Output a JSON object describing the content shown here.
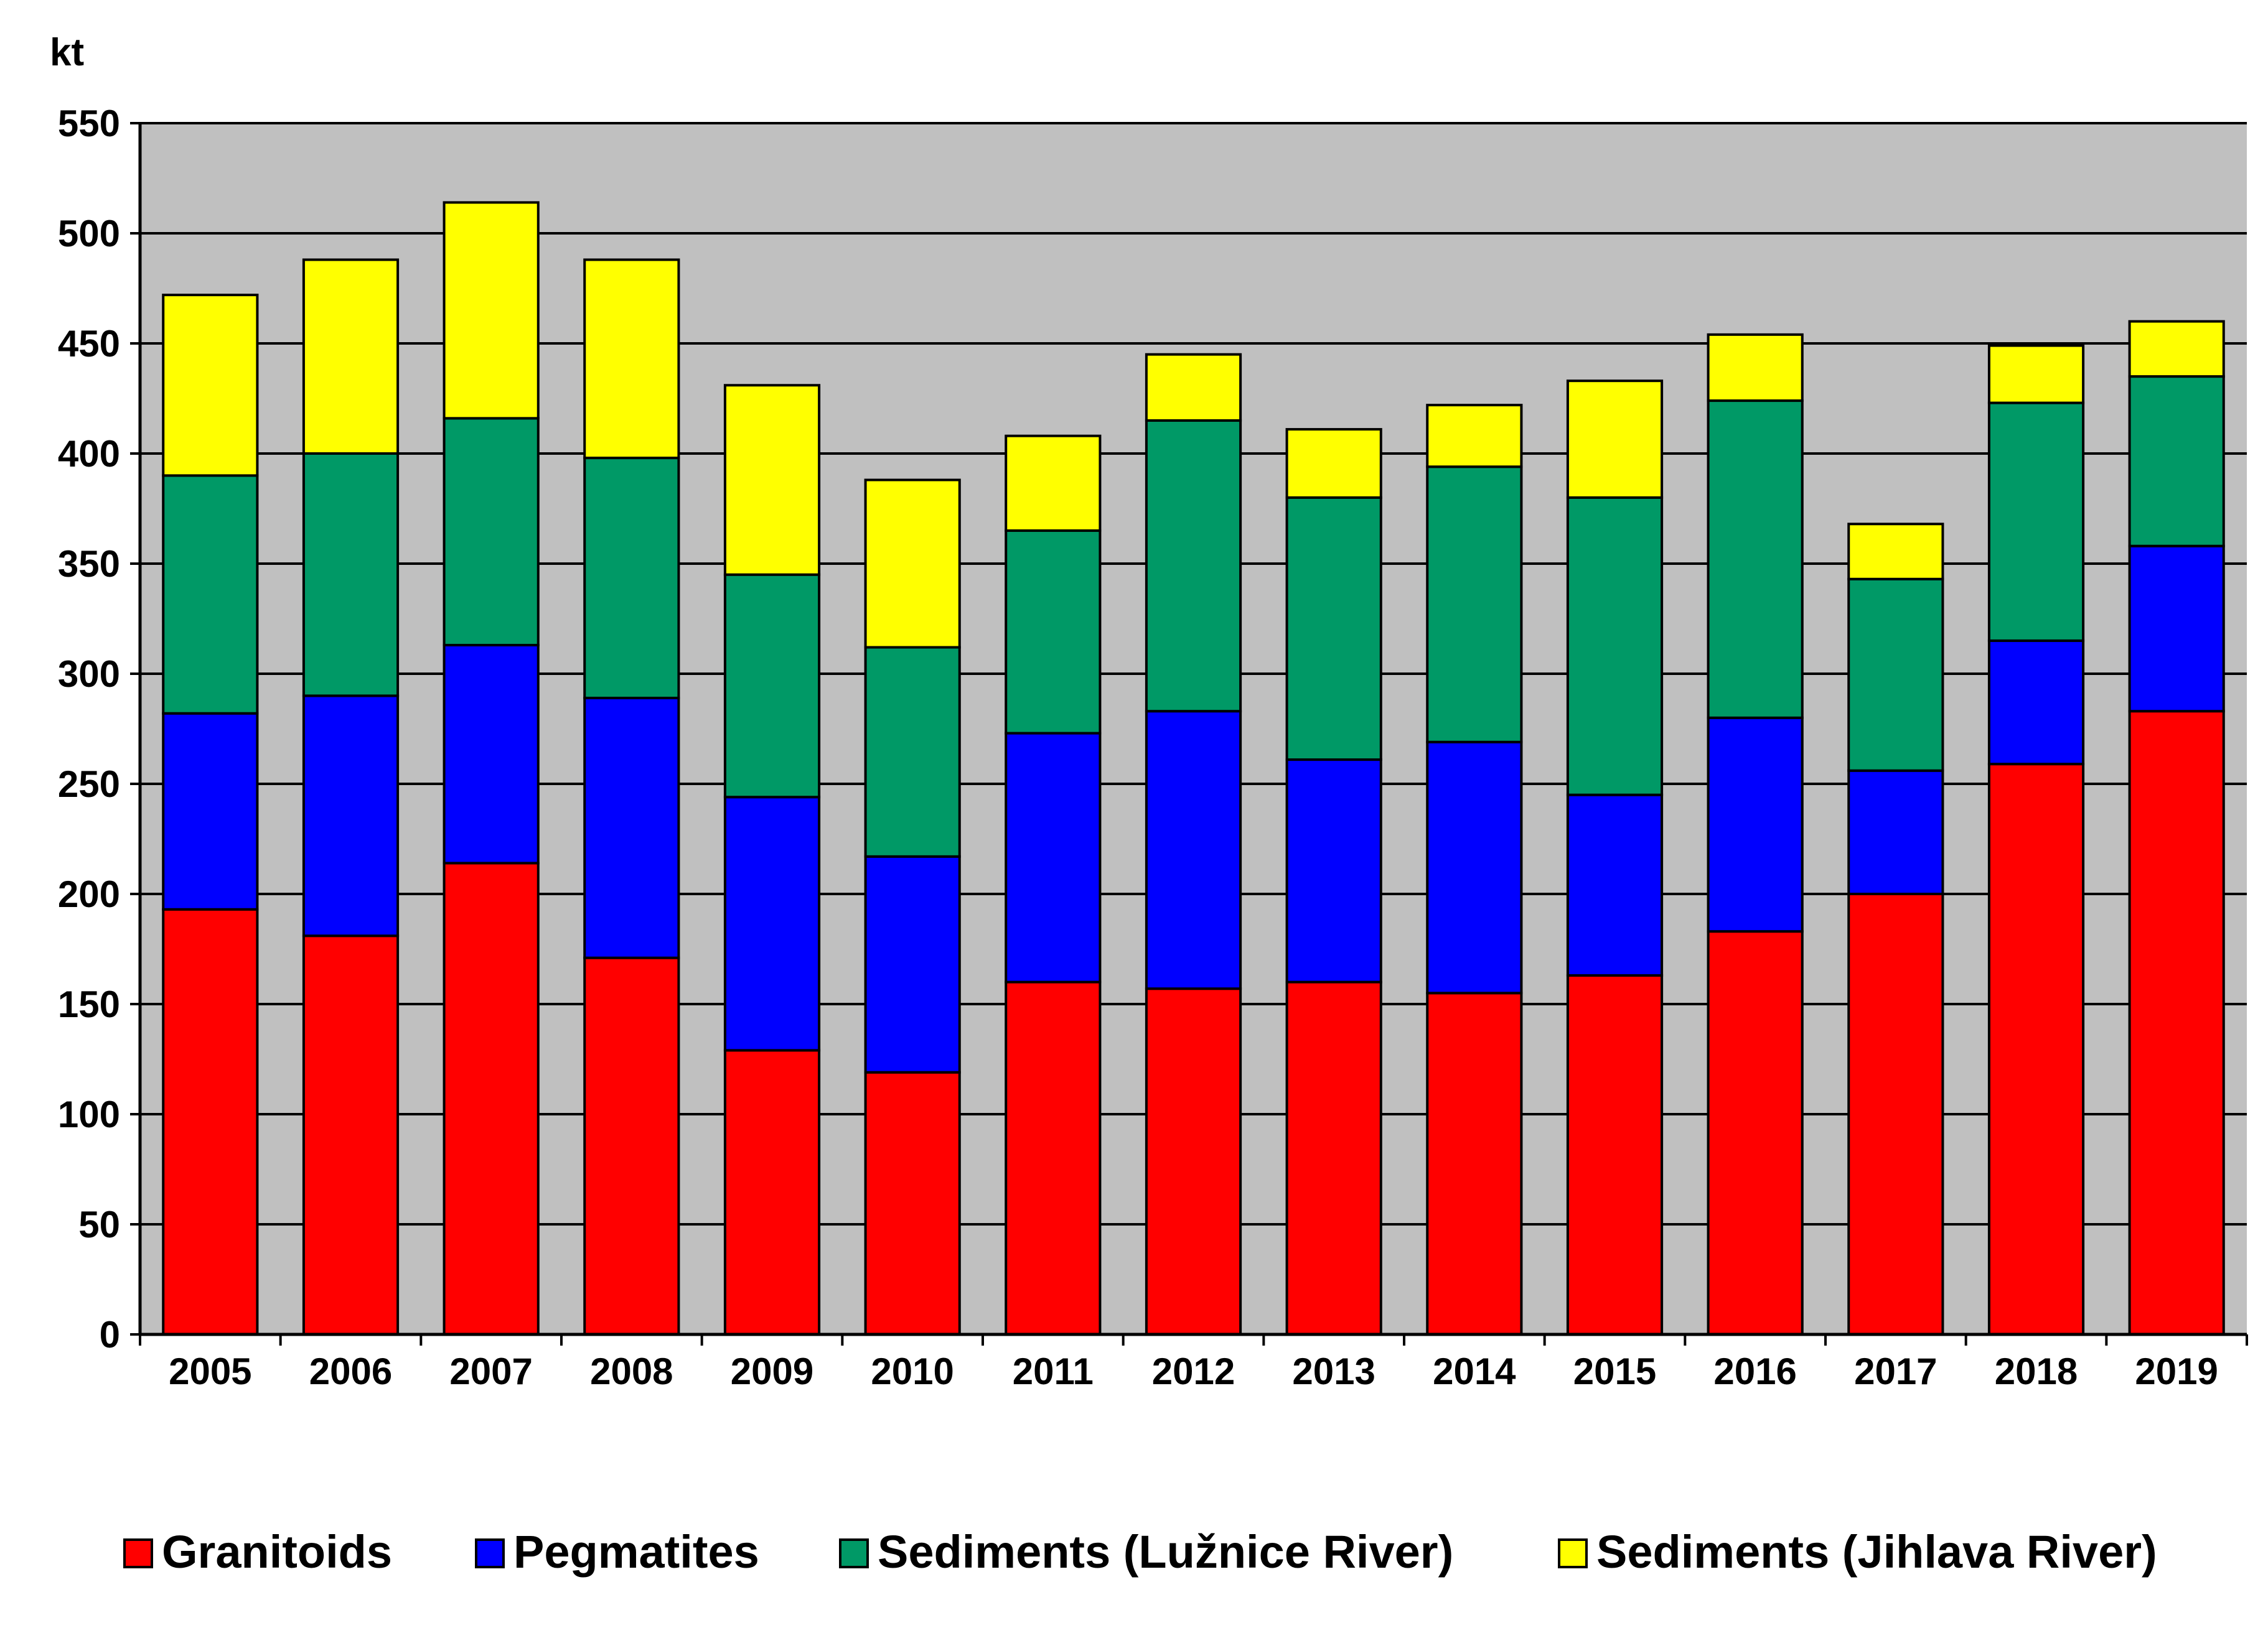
{
  "chart_data": {
    "type": "bar",
    "stacked": true,
    "title": "",
    "ylabel": "kt",
    "xlabel": "",
    "ylim": [
      0,
      550
    ],
    "yticks": [
      0,
      50,
      100,
      150,
      200,
      250,
      300,
      350,
      400,
      450,
      500,
      550
    ],
    "grid": true,
    "legend_position": "bottom",
    "categories": [
      "2005",
      "2006",
      "2007",
      "2008",
      "2009",
      "2010",
      "2011",
      "2012",
      "2013",
      "2014",
      "2015",
      "2016",
      "2017",
      "2018",
      "2019"
    ],
    "series": [
      {
        "name": "Granitoids",
        "color": "#ff0000",
        "values": [
          193,
          181,
          214,
          171,
          129,
          119,
          160,
          157,
          160,
          155,
          163,
          183,
          200,
          259,
          283
        ]
      },
      {
        "name": "Pegmatites",
        "color": "#0000ff",
        "values": [
          89,
          109,
          99,
          118,
          115,
          98,
          113,
          126,
          101,
          114,
          82,
          97,
          56,
          56,
          75
        ]
      },
      {
        "name": "Sediments (Lužnice River)",
        "color": "#009966",
        "values": [
          108,
          110,
          103,
          109,
          101,
          95,
          92,
          132,
          119,
          125,
          135,
          144,
          87,
          108,
          77
        ]
      },
      {
        "name": "Sediments (Jihlava River)",
        "color": "#ffff00",
        "values": [
          82,
          88,
          98,
          90,
          86,
          76,
          43,
          30,
          31,
          28,
          53,
          30,
          25,
          26,
          25
        ]
      }
    ],
    "plot_background": "#c0c0c0",
    "gridline_color": "#000000"
  }
}
